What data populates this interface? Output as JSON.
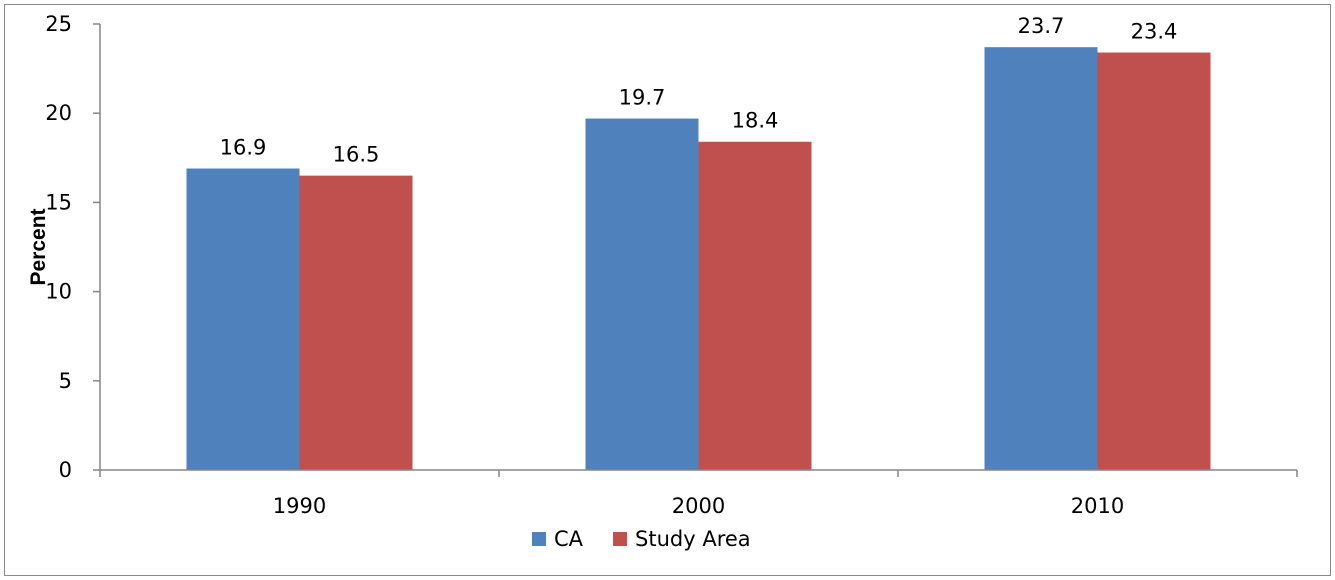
{
  "chart_data": {
    "type": "bar",
    "categories": [
      "1990",
      "2000",
      "2010"
    ],
    "series": [
      {
        "name": "CA",
        "values": [
          16.9,
          19.7,
          23.7
        ],
        "color": "#4F81BD"
      },
      {
        "name": "Study Area",
        "values": [
          16.5,
          18.4,
          23.4
        ],
        "color": "#C0504D"
      }
    ],
    "data_labels": true,
    "title": "",
    "xlabel": "",
    "ylabel": "Percent",
    "ylim": [
      0,
      25
    ],
    "yticks": [
      0,
      5,
      10,
      15,
      20,
      25
    ],
    "grid": false,
    "legend_position": "bottom"
  }
}
